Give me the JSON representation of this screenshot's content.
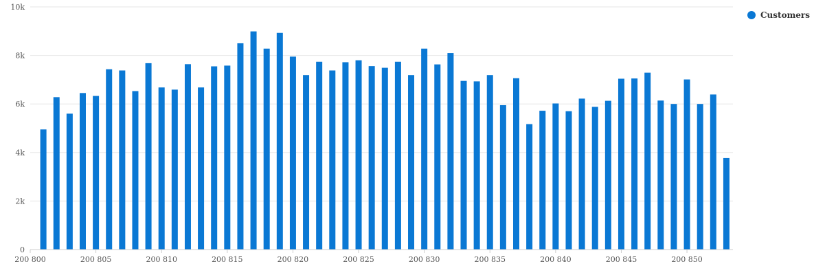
{
  "chart_data": {
    "type": "bar",
    "title": "",
    "xlabel": "",
    "ylabel": "",
    "x": [
      200801,
      200802,
      200803,
      200804,
      200805,
      200806,
      200807,
      200808,
      200809,
      200810,
      200811,
      200812,
      200813,
      200814,
      200815,
      200816,
      200817,
      200818,
      200819,
      200820,
      200821,
      200822,
      200823,
      200824,
      200825,
      200826,
      200827,
      200828,
      200829,
      200830,
      200831,
      200832,
      200833,
      200834,
      200835,
      200836,
      200837,
      200838,
      200839,
      200840,
      200841,
      200842,
      200843,
      200844,
      200845,
      200846,
      200847,
      200848,
      200849,
      200850,
      200851,
      200852,
      200853
    ],
    "series": [
      {
        "name": "Customers",
        "color": "#0a78d4",
        "values": [
          4950,
          6280,
          5600,
          6450,
          6330,
          7430,
          7380,
          6530,
          7680,
          6680,
          6590,
          7640,
          6680,
          7550,
          7580,
          8500,
          8990,
          8280,
          8930,
          7950,
          7190,
          7740,
          7380,
          7720,
          7800,
          7560,
          7490,
          7740,
          7190,
          8280,
          7630,
          8100,
          6950,
          6930,
          7190,
          5950,
          7060,
          5170,
          5720,
          6020,
          5700,
          6220,
          5880,
          6130,
          7040,
          7050,
          7290,
          6140,
          6000,
          7010,
          6000,
          6390,
          3770
        ]
      }
    ],
    "xtick_labels": [
      "200 800",
      "200 805",
      "200 810",
      "200 815",
      "200 820",
      "200 825",
      "200 830",
      "200 835",
      "200 840",
      "200 845",
      "200 850"
    ],
    "xtick_values": [
      200800,
      200805,
      200810,
      200815,
      200820,
      200825,
      200830,
      200835,
      200840,
      200845,
      200850
    ],
    "ytick_labels": [
      "0",
      "2k",
      "4k",
      "6k",
      "8k",
      "10k"
    ],
    "ytick_values": [
      0,
      2000,
      4000,
      6000,
      8000,
      10000
    ],
    "xlim": [
      200800,
      200853.5
    ],
    "ylim": [
      0,
      10000
    ],
    "grid": "horizontal",
    "legend": "top-right"
  }
}
